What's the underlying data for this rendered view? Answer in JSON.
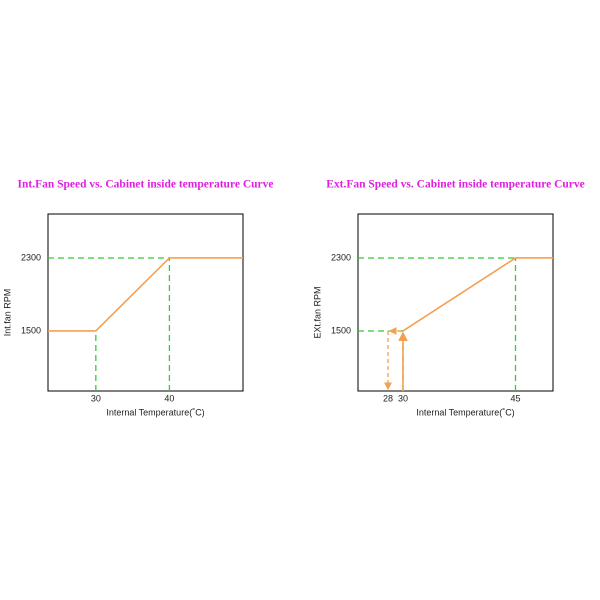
{
  "chart_data": [
    {
      "type": "line",
      "title": "Int.Fan Speed vs. Cabinet inside temperature Curve",
      "x_label": "Internal Temperature(˚C)",
      "y_label": "Int.fan RPM",
      "x": [
        23.5,
        30,
        40,
        50
      ],
      "values": [
        1500,
        1500,
        2300,
        2300
      ],
      "color": "#f5a050",
      "guide_color": "#33cc33",
      "xlim": [
        23.5,
        50
      ],
      "ylim": [
        842,
        2782
      ],
      "xticks": [
        30,
        40
      ],
      "yticks": [
        1500,
        2300
      ]
    },
    {
      "type": "line",
      "title": "Ext.Fan Speed vs. Cabinet inside temperature Curve",
      "x_label": "Internal Temperature(˚C)",
      "y_label": "EXt.fan RPM",
      "x": [
        30,
        45,
        50
      ],
      "values": [
        1500,
        2300,
        2300
      ],
      "color": "#f5a050",
      "guide_color": "#33cc33",
      "xlim": [
        24,
        50
      ],
      "ylim": [
        842,
        2782
      ],
      "xticks": [
        28,
        30,
        45
      ],
      "yticks": [
        1500,
        2300
      ]
    }
  ]
}
